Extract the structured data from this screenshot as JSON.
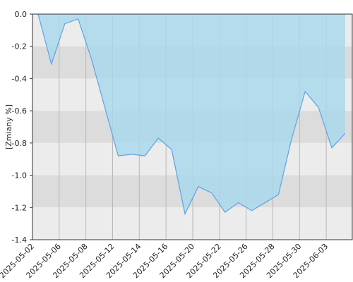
{
  "chart_data": {
    "type": "area",
    "y_label": "[Zmiany %]",
    "categories": [
      "2025-05-02",
      null,
      "2025-05-06",
      null,
      "2025-05-08",
      null,
      "2025-05-12",
      null,
      "2025-05-14",
      null,
      "2025-05-16",
      null,
      "2025-05-20",
      null,
      "2025-05-22",
      null,
      "2025-05-26",
      null,
      "2025-05-28",
      null,
      "2025-05-30",
      null,
      "2025-06-03",
      null
    ],
    "values": [
      0,
      -0.31,
      -0.06,
      -0.03,
      -0.28,
      -0.58,
      -0.88,
      -0.87,
      -0.88,
      -0.77,
      -0.84,
      -1.24,
      -1.07,
      -1.11,
      -1.23,
      -1.17,
      -1.22,
      -1.17,
      -1.12,
      -0.77,
      -0.48,
      -0.58,
      -0.83,
      -0.74
    ],
    "color": "#5aa5e6",
    "fill": "#a8d8ec",
    "ylim": [
      -1.4,
      0
    ],
    "yticks": [
      {
        "value": 0,
        "label": "0.0"
      },
      -0.2,
      -0.4,
      -0.6,
      -0.8,
      {
        "value": -1,
        "label": "-1.0"
      },
      -1.2,
      -1.4
    ],
    "grid": true
  }
}
